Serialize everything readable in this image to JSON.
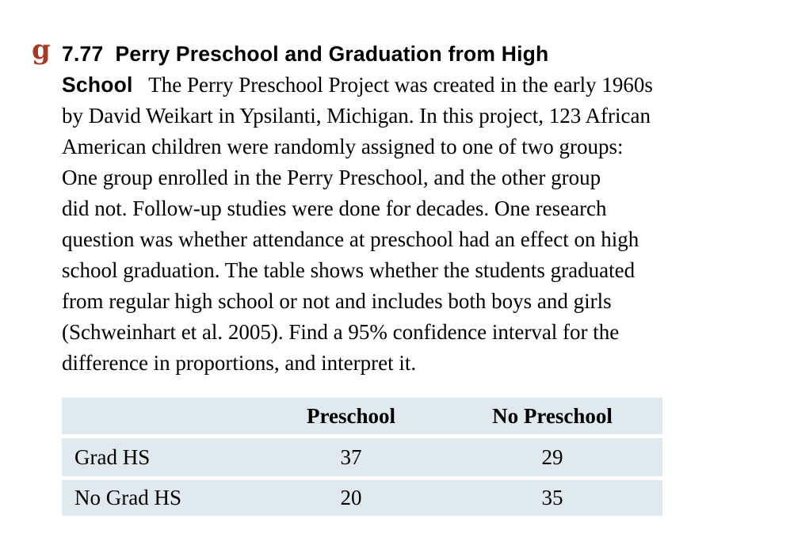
{
  "page": {
    "background": "#ffffff"
  },
  "exercise": {
    "marker": "g",
    "marker_color": "#a33b28",
    "number": "7.77",
    "title": "Perry Preschool and Graduation from High School",
    "lines": [
      {
        "bold": "7.77  Perry Preschool and Graduation from High"
      },
      {
        "bold": "School",
        "serif": "   The Perry Preschool Project was created in the early 1960s"
      },
      {
        "serif": "by David Weikart in Ypsilanti, Michigan. In this project, 123 African"
      },
      {
        "serif": "American children were randomly assigned to one of two groups:"
      },
      {
        "serif": "One group enrolled in the Perry Preschool, and the other group"
      },
      {
        "serif": "did not. Follow-up studies were done for decades. One research"
      },
      {
        "serif": "question was whether attendance at preschool had an effect on high"
      },
      {
        "serif": "school graduation. The table shows whether the students graduated"
      },
      {
        "serif": "from regular high school or not and includes both boys and girls"
      },
      {
        "serif": "(Schweinhart et al. 2005). Find a 95% confidence interval for the"
      },
      {
        "serif": "difference in proportions, and interpret it."
      }
    ]
  },
  "table": {
    "background": "#dfe9ee",
    "headers": [
      "",
      "Preschool",
      "No Preschool"
    ],
    "rows": [
      {
        "label": "Grad HS",
        "values": [
          "37",
          "29"
        ]
      },
      {
        "label": "No Grad HS",
        "values": [
          "20",
          "35"
        ]
      }
    ]
  }
}
